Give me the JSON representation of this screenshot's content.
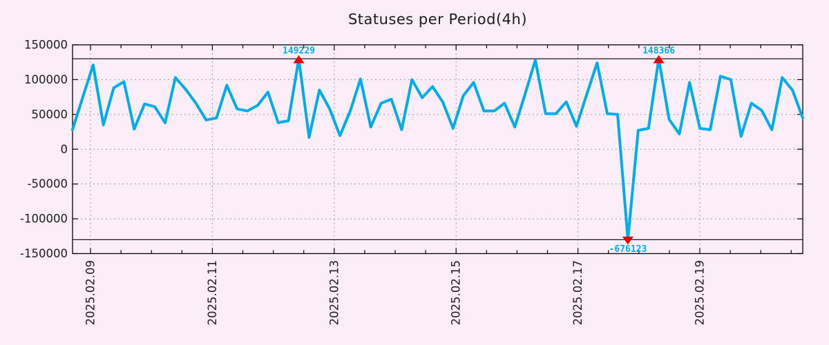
{
  "title": "Statuses per Period(4h)",
  "colors": {
    "background": "#fceef9",
    "line": "#00acec",
    "marker": "#e60000",
    "annotation_text": "#00acec",
    "grid": "#999999",
    "axis": "#000000",
    "text": "#1c1c1c"
  },
  "chart_data": {
    "type": "line",
    "title": "Statuses per Period(4h)",
    "period": "4h",
    "xlabel": "",
    "ylabel": "",
    "ylim": [
      -150000,
      150000
    ],
    "y_ticks": [
      150000,
      100000,
      50000,
      0,
      -50000,
      -100000,
      -150000
    ],
    "y_tick_labels": [
      "150000",
      "100000",
      "50000",
      "0",
      "-50000",
      "-100000",
      "-150000"
    ],
    "x_tick_labels": [
      "2025.02.09",
      "2025.02.11",
      "2025.02.13",
      "2025.02.15",
      "2025.02.17",
      "2025.02.19"
    ],
    "x_major_interval_days": 2,
    "grid": true,
    "legend_position": "none",
    "clip_limits": [
      -130000,
      130000
    ],
    "values": [
      28000,
      75000,
      121000,
      35000,
      88000,
      97000,
      29000,
      65000,
      61000,
      38000,
      103000,
      86000,
      66000,
      42000,
      45000,
      92000,
      58000,
      55000,
      63000,
      82000,
      38000,
      41000,
      149229,
      17000,
      85000,
      58000,
      19500,
      55000,
      101000,
      32000,
      66000,
      72000,
      28000,
      100000,
      74000,
      90000,
      68000,
      30000,
      77000,
      96000,
      55000,
      55000,
      66000,
      32000,
      79000,
      128000,
      51000,
      51000,
      68000,
      33000,
      79000,
      124000,
      51000,
      50000,
      -676123,
      27000,
      30000,
      148366,
      43000,
      22000,
      96000,
      30000,
      28000,
      105000,
      100000,
      18500,
      66000,
      56000,
      28000,
      103000,
      85000,
      45000
    ],
    "annotations": [
      {
        "index": 22,
        "label": "149229",
        "direction": "up"
      },
      {
        "index": 54,
        "label": "-676123",
        "direction": "down"
      },
      {
        "index": 57,
        "label": "148366",
        "direction": "up"
      }
    ]
  }
}
